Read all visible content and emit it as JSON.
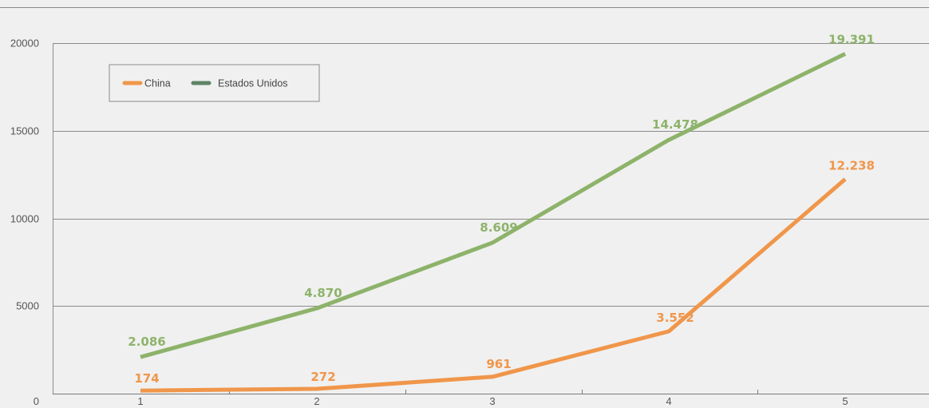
{
  "chart_data": {
    "type": "line",
    "title": "",
    "xlabel": "",
    "ylabel": "",
    "x": [
      "1",
      "2",
      "3",
      "4",
      "5"
    ],
    "ylim": [
      0,
      20000
    ],
    "yticks": [
      "0",
      "5000",
      "10000",
      "15000",
      "20000"
    ],
    "grid": "horizontal",
    "legend_position": "top-left",
    "series": [
      {
        "name": "China",
        "color": "#f0964a",
        "values": [
          174,
          272,
          961,
          3552,
          12238
        ],
        "labels": [
          "174",
          "272",
          "961",
          "3.552",
          "12.238"
        ]
      },
      {
        "name": "Estados Unidos",
        "color": "#8db36a",
        "legend_color": "#5e8466",
        "values": [
          2086,
          4870,
          8609,
          14478,
          19391
        ],
        "labels": [
          "2.086",
          "4.870",
          "8.609",
          "14.478",
          "19.391"
        ]
      }
    ]
  }
}
